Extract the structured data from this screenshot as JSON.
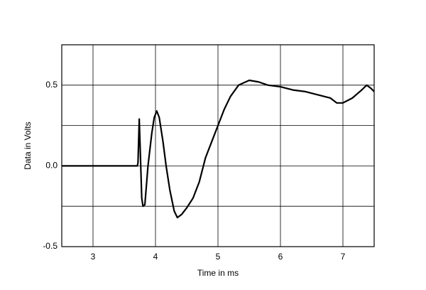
{
  "chart_data": {
    "type": "line",
    "x_label": "Time in ms",
    "y_label": "Data in Volts",
    "x": [
      2.5,
      3.0,
      3.5,
      3.71,
      3.72,
      3.74,
      3.76,
      3.78,
      3.8,
      3.83,
      3.88,
      3.94,
      3.98,
      4.02,
      4.06,
      4.12,
      4.17,
      4.23,
      4.3,
      4.35,
      4.42,
      4.5,
      4.6,
      4.7,
      4.8,
      4.9,
      5.0,
      5.1,
      5.2,
      5.33,
      5.5,
      5.65,
      5.8,
      6.0,
      6.2,
      6.4,
      6.6,
      6.8,
      6.9,
      7.0,
      7.15,
      7.3,
      7.38,
      7.45,
      7.5
    ],
    "series": [
      {
        "color": "#000000",
        "values": [
          0,
          0,
          0,
          0,
          0.02,
          0.29,
          0.05,
          -0.2,
          -0.25,
          -0.24,
          0.0,
          0.2,
          0.3,
          0.34,
          0.3,
          0.15,
          0.0,
          -0.15,
          -0.28,
          -0.32,
          -0.3,
          -0.26,
          -0.2,
          -0.1,
          0.05,
          0.15,
          0.25,
          0.35,
          0.43,
          0.5,
          0.53,
          0.52,
          0.5,
          0.49,
          0.47,
          0.46,
          0.44,
          0.42,
          0.39,
          0.39,
          0.42,
          0.47,
          0.5,
          0.48,
          0.46
        ]
      }
    ],
    "xlim": [
      2.5,
      7.5
    ],
    "xticks": [
      3,
      4,
      5,
      6,
      7
    ],
    "ylim": [
      -0.5,
      0.75
    ],
    "yticks": [
      -0.5,
      {
        "value": 0,
        "label": "0.0"
      },
      0.5
    ],
    "minor_yticks": [
      -0.25,
      0.25
    ],
    "grid": true
  }
}
